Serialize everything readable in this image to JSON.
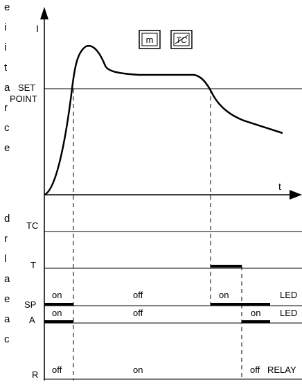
{
  "graph": {
    "y_axis_label": "I",
    "x_axis_label": "t",
    "setpoint_label_line1": "SET",
    "setpoint_label_line2": "POINT",
    "mode_box_m": "m",
    "mode_box_tc": "TC"
  },
  "rows": {
    "tc": {
      "label": "TC"
    },
    "t": {
      "label": "T"
    },
    "sp": {
      "label": "SP",
      "states": [
        "on",
        "off",
        "on"
      ],
      "tail": "LED"
    },
    "a": {
      "label": "A",
      "states": [
        "on",
        "off",
        "on"
      ],
      "tail": "LED"
    },
    "r": {
      "label": "R",
      "states": [
        "off",
        "on",
        "off"
      ],
      "tail": "RELAY"
    }
  },
  "left_margin_letters": [
    "e",
    "i",
    "i",
    "t",
    "a",
    "r",
    "c",
    "e",
    "d",
    "r",
    "l",
    "a",
    "e",
    "a",
    "c"
  ]
}
